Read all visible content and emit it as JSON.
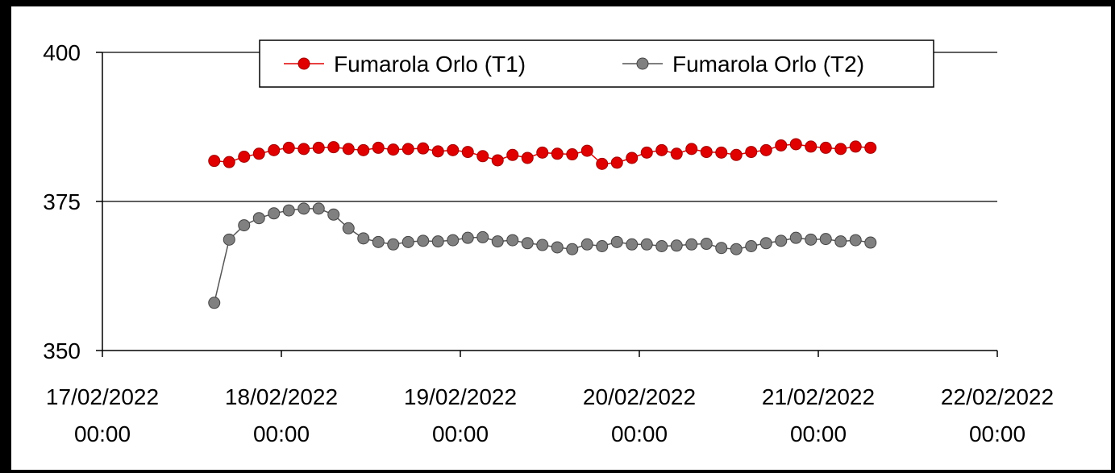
{
  "chart_data": {
    "type": "line",
    "x": [
      "2022-02-17T15:00",
      "2022-02-17T17:00",
      "2022-02-17T19:00",
      "2022-02-17T21:00",
      "2022-02-17T23:00",
      "2022-02-18T01:00",
      "2022-02-18T03:00",
      "2022-02-18T05:00",
      "2022-02-18T07:00",
      "2022-02-18T09:00",
      "2022-02-18T11:00",
      "2022-02-18T13:00",
      "2022-02-18T15:00",
      "2022-02-18T17:00",
      "2022-02-18T19:00",
      "2022-02-18T21:00",
      "2022-02-18T23:00",
      "2022-02-19T01:00",
      "2022-02-19T03:00",
      "2022-02-19T05:00",
      "2022-02-19T07:00",
      "2022-02-19T09:00",
      "2022-02-19T11:00",
      "2022-02-19T13:00",
      "2022-02-19T15:00",
      "2022-02-19T17:00",
      "2022-02-19T19:00",
      "2022-02-19T21:00",
      "2022-02-19T23:00",
      "2022-02-20T01:00",
      "2022-02-20T03:00",
      "2022-02-20T05:00",
      "2022-02-20T07:00",
      "2022-02-20T09:00",
      "2022-02-20T11:00",
      "2022-02-20T13:00",
      "2022-02-20T15:00",
      "2022-02-20T17:00",
      "2022-02-20T19:00",
      "2022-02-20T21:00",
      "2022-02-20T23:00",
      "2022-02-21T01:00",
      "2022-02-21T03:00",
      "2022-02-21T05:00",
      "2022-02-21T07:00"
    ],
    "series": [
      {
        "name": "Fumarola Orlo (T1)",
        "color": "#e00000",
        "values": [
          381.8,
          381.6,
          382.5,
          383.0,
          383.6,
          384.0,
          383.8,
          384.0,
          384.1,
          383.8,
          383.6,
          384.0,
          383.7,
          383.8,
          383.9,
          383.4,
          383.6,
          383.3,
          382.6,
          381.9,
          382.8,
          382.3,
          383.2,
          383.0,
          382.9,
          383.5,
          381.3,
          381.5,
          382.3,
          383.2,
          383.6,
          383.0,
          383.8,
          383.3,
          383.2,
          382.8,
          383.3,
          383.6,
          384.4,
          384.6,
          384.2,
          384.0,
          383.8,
          384.2,
          384.0
        ]
      },
      {
        "name": "Fumarola Orlo (T2)",
        "color": "#808080",
        "values": [
          358.0,
          368.6,
          371.0,
          372.2,
          373.0,
          373.5,
          373.8,
          373.8,
          372.8,
          370.5,
          368.8,
          368.2,
          367.8,
          368.2,
          368.4,
          368.3,
          368.5,
          368.9,
          369.0,
          368.3,
          368.5,
          368.0,
          367.7,
          367.3,
          367.0,
          367.8,
          367.5,
          368.2,
          367.8,
          367.8,
          367.5,
          367.6,
          367.8,
          367.9,
          367.2,
          367.0,
          367.5,
          368.0,
          368.4,
          368.9,
          368.6,
          368.7,
          368.3,
          368.5,
          368.1
        ]
      }
    ],
    "xlim": [
      "2022-02-17T00:00",
      "2022-02-22T00:00"
    ],
    "xticks": [
      {
        "value": "2022-02-17T00:00",
        "label": [
          "17/02/2022",
          "00:00"
        ]
      },
      {
        "value": "2022-02-18T00:00",
        "label": [
          "18/02/2022",
          "00:00"
        ]
      },
      {
        "value": "2022-02-19T00:00",
        "label": [
          "19/02/2022",
          "00:00"
        ]
      },
      {
        "value": "2022-02-20T00:00",
        "label": [
          "20/02/2022",
          "00:00"
        ]
      },
      {
        "value": "2022-02-21T00:00",
        "label": [
          "21/02/2022",
          "00:00"
        ]
      },
      {
        "value": "2022-02-22T00:00",
        "label": [
          "22/02/2022",
          "00:00"
        ]
      }
    ],
    "ylim": [
      350,
      400
    ],
    "yticks": [
      350,
      375,
      400
    ],
    "grid": true,
    "legend": "top"
  }
}
